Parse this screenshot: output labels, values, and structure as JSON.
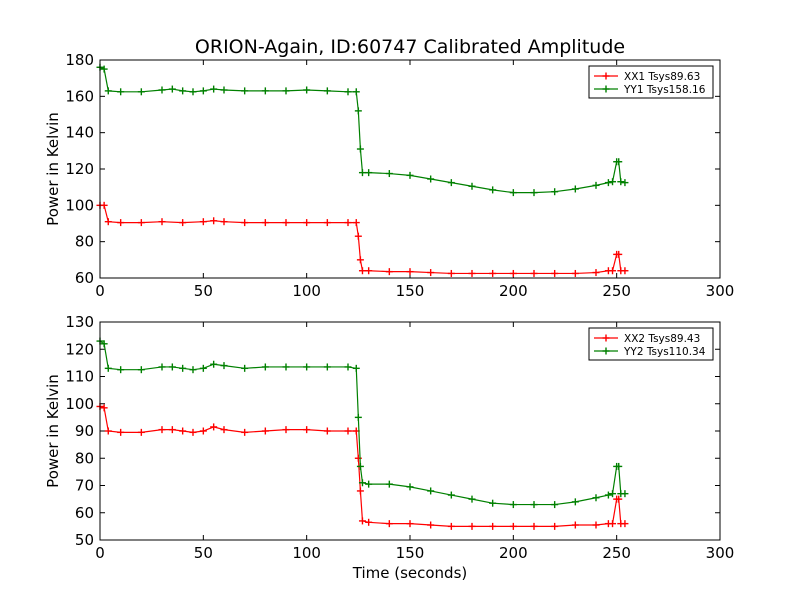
{
  "figure": {
    "title": "ORION-Again, ID:60747 Calibrated Amplitude",
    "xlabel": "Time (seconds)"
  },
  "chart_data": [
    {
      "type": "line",
      "title": "ORION-Again, ID:60747 Calibrated Amplitude",
      "xlabel": "",
      "ylabel": "Power in Kelvin",
      "xlim": [
        0,
        300
      ],
      "ylim": [
        60,
        180
      ],
      "xticks": [
        0,
        50,
        100,
        150,
        200,
        250,
        300
      ],
      "yticks": [
        60,
        80,
        100,
        120,
        140,
        160,
        180
      ],
      "grid": false,
      "legend_position": "top-right",
      "marker": "+",
      "series": [
        {
          "name": "XX1 Tsys89.63",
          "color": "#ff0000",
          "points": [
            [
              0,
              100
            ],
            [
              2,
              100
            ],
            [
              4,
              91
            ],
            [
              10,
              90.5
            ],
            [
              20,
              90.5
            ],
            [
              30,
              91
            ],
            [
              40,
              90.5
            ],
            [
              50,
              91
            ],
            [
              55,
              91.5
            ],
            [
              60,
              91
            ],
            [
              70,
              90.5
            ],
            [
              80,
              90.5
            ],
            [
              90,
              90.5
            ],
            [
              100,
              90.5
            ],
            [
              110,
              90.5
            ],
            [
              120,
              90.5
            ],
            [
              124,
              90.5
            ],
            [
              125,
              83
            ],
            [
              126,
              70
            ],
            [
              127,
              64
            ],
            [
              130,
              64
            ],
            [
              140,
              63.5
            ],
            [
              150,
              63.5
            ],
            [
              160,
              63
            ],
            [
              170,
              62.5
            ],
            [
              180,
              62.5
            ],
            [
              190,
              62.5
            ],
            [
              200,
              62.5
            ],
            [
              210,
              62.5
            ],
            [
              220,
              62.5
            ],
            [
              230,
              62.5
            ],
            [
              240,
              63
            ],
            [
              246,
              64
            ],
            [
              248,
              64
            ],
            [
              250,
              73
            ],
            [
              251,
              73
            ],
            [
              252,
              64
            ],
            [
              254,
              64
            ]
          ]
        },
        {
          "name": "YY1 Tsys158.16",
          "color": "#008000",
          "points": [
            [
              0,
              176
            ],
            [
              2,
              175
            ],
            [
              4,
              163
            ],
            [
              10,
              162.5
            ],
            [
              20,
              162.5
            ],
            [
              30,
              163.5
            ],
            [
              35,
              164
            ],
            [
              40,
              163
            ],
            [
              45,
              162.5
            ],
            [
              50,
              163
            ],
            [
              55,
              164
            ],
            [
              60,
              163.5
            ],
            [
              70,
              163
            ],
            [
              80,
              163
            ],
            [
              90,
              163
            ],
            [
              100,
              163.5
            ],
            [
              110,
              163
            ],
            [
              120,
              162.5
            ],
            [
              124,
              162.5
            ],
            [
              125,
              152
            ],
            [
              126,
              131
            ],
            [
              127,
              118
            ],
            [
              130,
              118
            ],
            [
              140,
              117.5
            ],
            [
              150,
              116.5
            ],
            [
              160,
              114.5
            ],
            [
              170,
              112.5
            ],
            [
              180,
              110.5
            ],
            [
              190,
              108.5
            ],
            [
              200,
              107
            ],
            [
              210,
              107
            ],
            [
              220,
              107.5
            ],
            [
              230,
              109
            ],
            [
              240,
              111
            ],
            [
              246,
              112.5
            ],
            [
              248,
              113
            ],
            [
              250,
              124
            ],
            [
              251,
              124
            ],
            [
              252,
              113
            ],
            [
              254,
              112.5
            ]
          ]
        }
      ]
    },
    {
      "type": "line",
      "title": "",
      "xlabel": "Time (seconds)",
      "ylabel": "Power in Kelvin",
      "xlim": [
        0,
        300
      ],
      "ylim": [
        50,
        130
      ],
      "xticks": [
        0,
        50,
        100,
        150,
        200,
        250,
        300
      ],
      "yticks": [
        50,
        60,
        70,
        80,
        90,
        100,
        110,
        120,
        130
      ],
      "grid": false,
      "legend_position": "top-right",
      "marker": "+",
      "series": [
        {
          "name": "XX2 Tsys89.43",
          "color": "#ff0000",
          "points": [
            [
              0,
              99
            ],
            [
              2,
              98.5
            ],
            [
              4,
              90
            ],
            [
              10,
              89.5
            ],
            [
              20,
              89.5
            ],
            [
              30,
              90.5
            ],
            [
              35,
              90.5
            ],
            [
              40,
              90
            ],
            [
              45,
              89.5
            ],
            [
              50,
              90
            ],
            [
              55,
              91.5
            ],
            [
              60,
              90.5
            ],
            [
              70,
              89.5
            ],
            [
              80,
              90
            ],
            [
              90,
              90.5
            ],
            [
              100,
              90.5
            ],
            [
              110,
              90
            ],
            [
              120,
              90
            ],
            [
              124,
              90
            ],
            [
              125,
              80
            ],
            [
              126,
              68
            ],
            [
              127,
              57
            ],
            [
              130,
              56.5
            ],
            [
              140,
              56
            ],
            [
              150,
              56
            ],
            [
              160,
              55.5
            ],
            [
              170,
              55
            ],
            [
              180,
              55
            ],
            [
              190,
              55
            ],
            [
              200,
              55
            ],
            [
              210,
              55
            ],
            [
              220,
              55
            ],
            [
              230,
              55.5
            ],
            [
              240,
              55.5
            ],
            [
              246,
              56
            ],
            [
              248,
              56
            ],
            [
              250,
              65
            ],
            [
              251,
              65
            ],
            [
              252,
              56
            ],
            [
              254,
              56
            ]
          ]
        },
        {
          "name": "YY2 Tsys110.34",
          "color": "#008000",
          "points": [
            [
              0,
              123
            ],
            [
              2,
              122
            ],
            [
              4,
              113
            ],
            [
              10,
              112.5
            ],
            [
              20,
              112.5
            ],
            [
              30,
              113.5
            ],
            [
              35,
              113.5
            ],
            [
              40,
              113
            ],
            [
              45,
              112.5
            ],
            [
              50,
              113
            ],
            [
              55,
              114.5
            ],
            [
              60,
              114
            ],
            [
              70,
              113
            ],
            [
              80,
              113.5
            ],
            [
              90,
              113.5
            ],
            [
              100,
              113.5
            ],
            [
              110,
              113.5
            ],
            [
              120,
              113.5
            ],
            [
              124,
              113
            ],
            [
              125,
              95
            ],
            [
              126,
              77
            ],
            [
              127,
              71
            ],
            [
              130,
              70.5
            ],
            [
              140,
              70.5
            ],
            [
              150,
              69.5
            ],
            [
              160,
              68
            ],
            [
              170,
              66.5
            ],
            [
              180,
              65
            ],
            [
              190,
              63.5
            ],
            [
              200,
              63
            ],
            [
              210,
              63
            ],
            [
              220,
              63
            ],
            [
              230,
              64
            ],
            [
              240,
              65.5
            ],
            [
              246,
              66.5
            ],
            [
              248,
              67
            ],
            [
              250,
              77
            ],
            [
              251,
              77
            ],
            [
              252,
              67
            ],
            [
              254,
              67
            ]
          ]
        }
      ]
    }
  ]
}
